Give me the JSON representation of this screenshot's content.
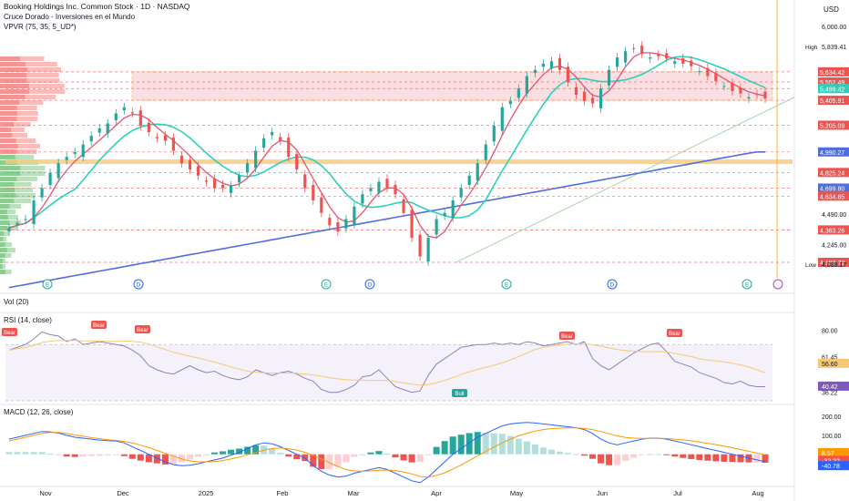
{
  "header": {
    "title": "Booking Holdings Inc. Common Stock · 1D · NASDAQ",
    "indicator_golden_cross": "Cruce Dorado - Inversiones en el Mundo",
    "indicator_vpvr": "VPVR (75, 35, 5_UD*)",
    "currency": "USD"
  },
  "panes": {
    "volume_label": "Vol (20)",
    "rsi_label": "RSI (14, close)",
    "macd_label": "MACD (12, 26, close)"
  },
  "colors": {
    "up": "#26a69a",
    "down": "#ef5350",
    "ma_fast": "#e8536c",
    "ma_mid": "#2ad1b8",
    "ma_slow": "#4f6ee0",
    "zone": "#f7d2d6",
    "zone_border": "#f7b24a",
    "rsi": "#8b83b8",
    "rsi_band": "#ede7f6",
    "macd_line": "#2962ff",
    "signal_line": "#ff9800"
  },
  "chart_data": [
    {
      "type": "line",
      "title": "Booking Holdings Inc. Common Stock · 1D · NASDAQ",
      "x_ticks": [
        "Nov",
        "Dec",
        "2025",
        "Feb",
        "Mar",
        "Apr",
        "May",
        "Jun",
        "Jul",
        "Aug"
      ],
      "y_ticks": [
        "6,000.00",
        "4,490.00",
        "4,245.00"
      ],
      "price_labels": [
        {
          "label": "High",
          "value": "5,839.41"
        },
        {
          "value": "5,634.42"
        },
        {
          "value": "5,552.49"
        },
        {
          "value": "5,499.42"
        },
        {
          "value": "5,405.91"
        },
        {
          "value": "5,205.09"
        },
        {
          "value": "4,990.27"
        },
        {
          "value": "4,825.24"
        },
        {
          "value": "4,699.80"
        },
        {
          "value": "4,634.85"
        },
        {
          "value": "4,363.26"
        },
        {
          "value": "4,102.72"
        },
        {
          "label": "Low",
          "value": "4,089.17"
        }
      ],
      "series": [
        {
          "name": "",
          "values": [
            4380,
            4420,
            4450,
            4600,
            4700,
            4820,
            4900,
            4950,
            4990,
            5050,
            5120,
            5180,
            5220,
            5300,
            5350,
            5300,
            5200,
            5150,
            5100,
            5080,
            5000,
            4900,
            4850,
            4800,
            4750,
            4700,
            4700,
            4720,
            4800,
            4900,
            5000,
            5100,
            5150,
            5080,
            4950,
            4850,
            4700,
            4600,
            4500,
            4400,
            4350,
            4450,
            4550,
            4650,
            4700,
            4750,
            4700,
            4650,
            4500,
            4300,
            4150,
            4300,
            4450,
            4500,
            4600,
            4700,
            4800,
            4900,
            5050,
            5200,
            5350,
            5400,
            5500,
            5600,
            5650,
            5700,
            5720,
            5650,
            5550,
            5450,
            5400,
            5380,
            5500,
            5650,
            5750,
            5800,
            5820,
            5780,
            5750,
            5760,
            5740,
            5720,
            5700,
            5680,
            5640,
            5600,
            5560,
            5520,
            5480,
            5460,
            5430,
            5450,
            5420
          ]
        }
      ],
      "events": [
        "E",
        "D",
        "E",
        "D",
        "E",
        "D",
        "E"
      ]
    },
    {
      "type": "line",
      "title": "RSI (14, close)",
      "y_ticks": [
        "80.00",
        "61.45",
        "56.60",
        "40.42",
        "36.22"
      ],
      "annotations": [
        "Bear",
        "Bear",
        "Bear",
        "Bull",
        "Bear",
        "Bear"
      ],
      "series": [
        {
          "name": "",
          "values": [
            66,
            68,
            70,
            74,
            79,
            77,
            76,
            72,
            74,
            70,
            71,
            72,
            71,
            70,
            69,
            66,
            62,
            55,
            52,
            50,
            49,
            52,
            55,
            52,
            50,
            51,
            48,
            46,
            45,
            47,
            52,
            50,
            48,
            50,
            51,
            49,
            46,
            44,
            38,
            36,
            36,
            38,
            41,
            47,
            48,
            52,
            46,
            40,
            38,
            36,
            37,
            48,
            56,
            60,
            64,
            68,
            69,
            70,
            70,
            71,
            70,
            71,
            70,
            72,
            71,
            69,
            70,
            71,
            72,
            70,
            72,
            60,
            55,
            52,
            56,
            60,
            64,
            67,
            70,
            71,
            65,
            58,
            56,
            54,
            50,
            48,
            46,
            43,
            42,
            44,
            41,
            40,
            40
          ]
        }
      ]
    },
    {
      "type": "bar",
      "title": "MACD (12, 26, close)",
      "y_ticks": [
        "200.00",
        "100.00",
        "8.57",
        "-32.22",
        "-40.78"
      ],
      "series": [
        {
          "name": "",
          "values": [
            80,
            90,
            100,
            110,
            120,
            118,
            112,
            100,
            90,
            85,
            80,
            75,
            72,
            70,
            60,
            40,
            20,
            0,
            -20,
            -40,
            -55,
            -60,
            -58,
            -50,
            -40,
            -30,
            -20,
            -5,
            10,
            30,
            50,
            60,
            55,
            40,
            20,
            0,
            -20,
            -60,
            -90,
            -110,
            -120,
            -115,
            -100,
            -90,
            -80,
            -70,
            -80,
            -100,
            -120,
            -140,
            -150,
            -120,
            -80,
            -40,
            0,
            30,
            60,
            90,
            110,
            130,
            150,
            160,
            165,
            168,
            165,
            160,
            155,
            150,
            145,
            140,
            130,
            110,
            80,
            60,
            50,
            60,
            70,
            80,
            85,
            85,
            80,
            70,
            60,
            50,
            40,
            30,
            20,
            10,
            0,
            -10,
            -20,
            -30,
            -40
          ]
        },
        {
          "name": "",
          "values": [
            70,
            80,
            90,
            100,
            110,
            115,
            115,
            110,
            102,
            95,
            88,
            82,
            77,
            73,
            68,
            60,
            48,
            35,
            20,
            5,
            -10,
            -25,
            -35,
            -40,
            -40,
            -38,
            -33,
            -25,
            -15,
            -3,
            10,
            22,
            30,
            33,
            30,
            22,
            10,
            -5,
            -25,
            -45,
            -65,
            -80,
            -88,
            -90,
            -88,
            -84,
            -83,
            -86,
            -93,
            -104,
            -117,
            -120,
            -112,
            -98,
            -78,
            -56,
            -33,
            -8,
            15,
            38,
            60,
            80,
            97,
            111,
            122,
            130,
            135,
            138,
            139,
            139,
            136,
            130,
            120,
            108,
            97,
            89,
            85,
            84,
            84,
            84,
            83,
            80,
            76,
            71,
            65,
            58,
            51,
            43,
            34,
            25,
            16,
            6,
            -3
          ]
        }
      ]
    }
  ]
}
